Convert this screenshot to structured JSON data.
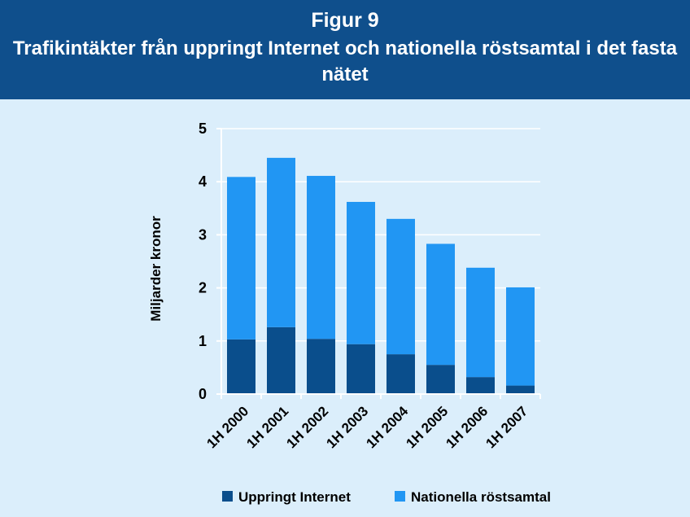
{
  "header": {
    "figure_label": "Figur 9",
    "title": "Trafikintäkter från uppringt Internet och nationella röstsamtal i det fasta nätet"
  },
  "colors": {
    "header_bg": "#0f4f8c",
    "plot_bg": "#dbeefb",
    "series_internet": "#0a4e8c",
    "series_voice": "#2196f3"
  },
  "chart_data": {
    "type": "bar",
    "stacked": true,
    "title": "Trafikintäkter från uppringt Internet och nationella röstsamtal i det fasta nätet",
    "xlabel": "",
    "ylabel": "Miljarder kronor",
    "ylim": [
      0,
      5
    ],
    "yticks": [
      "0",
      "1",
      "2",
      "3",
      "4",
      "5"
    ],
    "grid": true,
    "legend_position": "bottom",
    "categories": [
      "1H 2000",
      "1H 2001",
      "1H 2002",
      "1H 2003",
      "1H 2004",
      "1H 2005",
      "1H 2006",
      "1H 2007"
    ],
    "series": [
      {
        "name": "Uppringt Internet",
        "values": [
          1.03,
          1.26,
          1.04,
          0.94,
          0.75,
          0.55,
          0.32,
          0.16
        ]
      },
      {
        "name": "Nationella röstsamtal",
        "values": [
          3.06,
          3.19,
          3.07,
          2.68,
          2.55,
          2.28,
          2.06,
          1.85
        ]
      }
    ]
  }
}
